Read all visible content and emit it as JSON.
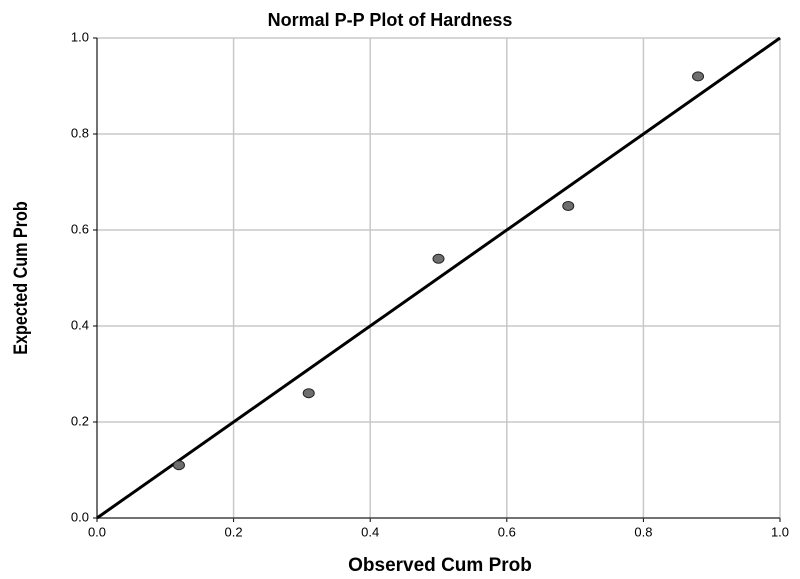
{
  "chart_data": {
    "type": "scatter",
    "title": "Normal P-P Plot of Hardness",
    "x_label": "Observed Cum Prob",
    "y_label": "Expected Cum Prob",
    "series": [
      {
        "name": "Hardness",
        "color": "#6e6e6e",
        "x": [
          0.12,
          0.31,
          0.5,
          0.69,
          0.88
        ],
        "values": [
          0.11,
          0.26,
          0.54,
          0.65,
          0.92
        ]
      }
    ],
    "xlim": [
      0,
      1
    ],
    "ylim": [
      0,
      1
    ],
    "xticks": [
      {
        "value": 0,
        "label": "0.0"
      },
      0.2,
      0.4,
      0.6,
      0.8,
      {
        "value": 1,
        "label": "1.0"
      }
    ],
    "yticks": [
      {
        "value": 0,
        "label": "0.0"
      },
      0.2,
      0.4,
      0.6,
      0.8,
      {
        "value": 1,
        "label": "1.0"
      }
    ],
    "grid": true,
    "reference_line": true
  }
}
